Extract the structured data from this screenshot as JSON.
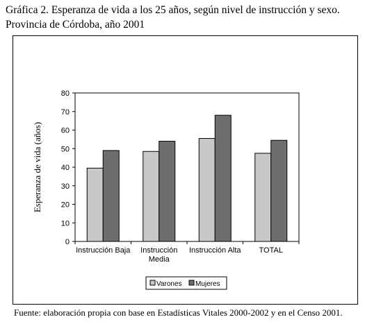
{
  "title": {
    "line1": "Gráfica 2. Esperanza de vida a los 25 años, según nivel de instrucción y sexo.",
    "line2": "Provincia de Córdoba, año 2001"
  },
  "footer": "Fuente: elaboración propia con base en Estadísticas Vitales 2000-2002 y en el Censo 2001.",
  "chart_data": {
    "type": "bar",
    "title": "Gráfica 2. Esperanza de vida a los 25 años, según nivel de instrucción y sexo. Provincia de Córdoba, año 2001",
    "xlabel": "",
    "ylabel": "Esperanza de vida (años)",
    "ylim": [
      0,
      80
    ],
    "yticks": [
      0,
      10,
      20,
      30,
      40,
      50,
      60,
      70,
      80
    ],
    "categories": [
      [
        "Instrucción Baja"
      ],
      [
        "Instrucción",
        "Media"
      ],
      [
        "Instrucción Alta"
      ],
      [
        "TOTAL"
      ]
    ],
    "series": [
      {
        "name": "Varones",
        "values": [
          39.5,
          48.5,
          55.5,
          47.5
        ],
        "color": "#c8c8c8"
      },
      {
        "name": "Mujeres",
        "values": [
          49,
          54,
          68,
          54.5
        ],
        "color": "#6e6e6e"
      }
    ],
    "grid": false,
    "legend_position": "bottom"
  }
}
